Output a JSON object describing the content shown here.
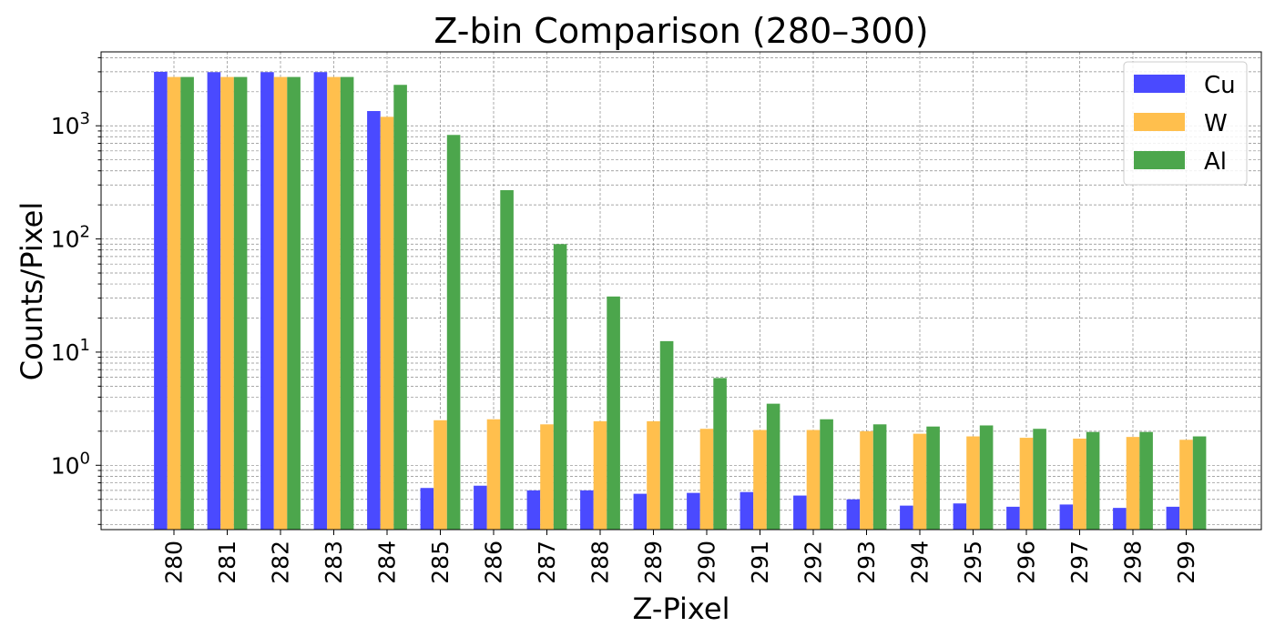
{
  "chart_data": {
    "type": "bar",
    "title": "Z-bin Comparison (280–300)",
    "xlabel": "Z-Pixel",
    "ylabel": "Counts/Pixel",
    "yscale": "log",
    "ylim": [
      0.27,
      4500
    ],
    "grid": true,
    "legend_position": "top-right",
    "categories": [
      "280",
      "281",
      "282",
      "283",
      "284",
      "285",
      "286",
      "287",
      "288",
      "289",
      "290",
      "291",
      "292",
      "293",
      "294",
      "295",
      "296",
      "297",
      "298",
      "299"
    ],
    "y_ticks": [
      {
        "value": 1,
        "base": "10",
        "exp": "0"
      },
      {
        "value": 10,
        "base": "10",
        "exp": "1"
      },
      {
        "value": 100,
        "base": "10",
        "exp": "2"
      },
      {
        "value": 1000,
        "base": "10",
        "exp": "3"
      }
    ],
    "series": [
      {
        "name": "Cu",
        "color": "#4a4aff",
        "values": [
          3000,
          2980,
          2980,
          2980,
          1350,
          0.63,
          0.66,
          0.6,
          0.6,
          0.56,
          0.57,
          0.58,
          0.54,
          0.5,
          0.44,
          0.46,
          0.43,
          0.45,
          0.42,
          0.43
        ]
      },
      {
        "name": "W",
        "color": "#ffbf4d",
        "values": [
          2700,
          2700,
          2700,
          2700,
          1200,
          2.5,
          2.55,
          2.3,
          2.45,
          2.45,
          2.1,
          2.05,
          2.05,
          2.0,
          1.9,
          1.8,
          1.75,
          1.72,
          1.78,
          1.68
        ]
      },
      {
        "name": "Al",
        "color": "#4ca64c",
        "values": [
          2700,
          2700,
          2700,
          2700,
          2300,
          830,
          270,
          90,
          31,
          12.5,
          5.9,
          3.5,
          2.55,
          2.3,
          2.2,
          2.25,
          2.1,
          1.97,
          1.97,
          1.8
        ]
      }
    ]
  }
}
